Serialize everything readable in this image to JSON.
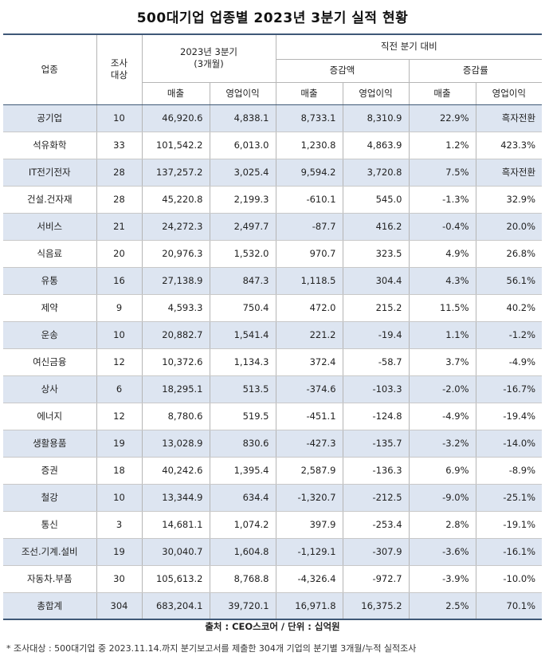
{
  "title": "500대기업 업종별 2023년 3분기 실적 현황",
  "header": {
    "industry": "업종",
    "count": "조사\n대상",
    "period": "2023년 3분기\n(3개월)",
    "vs_prev": "직전 분기 대비",
    "change_amount": "증감액",
    "change_rate": "증감률",
    "sales": "매출",
    "op_profit": "영업이익"
  },
  "rows": [
    {
      "industry": "공기업",
      "count": "10",
      "sales": "46,920.6",
      "op": "4,838.1",
      "d_sales": "8,733.1",
      "d_op": "8,310.9",
      "r_sales": "22.9%",
      "r_op": "흑자전환"
    },
    {
      "industry": "석유화학",
      "count": "33",
      "sales": "101,542.2",
      "op": "6,013.0",
      "d_sales": "1,230.8",
      "d_op": "4,863.9",
      "r_sales": "1.2%",
      "r_op": "423.3%"
    },
    {
      "industry": "IT전기전자",
      "count": "28",
      "sales": "137,257.2",
      "op": "3,025.4",
      "d_sales": "9,594.2",
      "d_op": "3,720.8",
      "r_sales": "7.5%",
      "r_op": "흑자전환"
    },
    {
      "industry": "건설.건자재",
      "count": "28",
      "sales": "45,220.8",
      "op": "2,199.3",
      "d_sales": "-610.1",
      "d_op": "545.0",
      "r_sales": "-1.3%",
      "r_op": "32.9%"
    },
    {
      "industry": "서비스",
      "count": "21",
      "sales": "24,272.3",
      "op": "2,497.7",
      "d_sales": "-87.7",
      "d_op": "416.2",
      "r_sales": "-0.4%",
      "r_op": "20.0%"
    },
    {
      "industry": "식음료",
      "count": "20",
      "sales": "20,976.3",
      "op": "1,532.0",
      "d_sales": "970.7",
      "d_op": "323.5",
      "r_sales": "4.9%",
      "r_op": "26.8%"
    },
    {
      "industry": "유통",
      "count": "16",
      "sales": "27,138.9",
      "op": "847.3",
      "d_sales": "1,118.5",
      "d_op": "304.4",
      "r_sales": "4.3%",
      "r_op": "56.1%"
    },
    {
      "industry": "제약",
      "count": "9",
      "sales": "4,593.3",
      "op": "750.4",
      "d_sales": "472.0",
      "d_op": "215.2",
      "r_sales": "11.5%",
      "r_op": "40.2%"
    },
    {
      "industry": "운송",
      "count": "10",
      "sales": "20,882.7",
      "op": "1,541.4",
      "d_sales": "221.2",
      "d_op": "-19.4",
      "r_sales": "1.1%",
      "r_op": "-1.2%"
    },
    {
      "industry": "여신금융",
      "count": "12",
      "sales": "10,372.6",
      "op": "1,134.3",
      "d_sales": "372.4",
      "d_op": "-58.7",
      "r_sales": "3.7%",
      "r_op": "-4.9%"
    },
    {
      "industry": "상사",
      "count": "6",
      "sales": "18,295.1",
      "op": "513.5",
      "d_sales": "-374.6",
      "d_op": "-103.3",
      "r_sales": "-2.0%",
      "r_op": "-16.7%"
    },
    {
      "industry": "에너지",
      "count": "12",
      "sales": "8,780.6",
      "op": "519.5",
      "d_sales": "-451.1",
      "d_op": "-124.8",
      "r_sales": "-4.9%",
      "r_op": "-19.4%"
    },
    {
      "industry": "생활용품",
      "count": "19",
      "sales": "13,028.9",
      "op": "830.6",
      "d_sales": "-427.3",
      "d_op": "-135.7",
      "r_sales": "-3.2%",
      "r_op": "-14.0%"
    },
    {
      "industry": "증권",
      "count": "18",
      "sales": "40,242.6",
      "op": "1,395.4",
      "d_sales": "2,587.9",
      "d_op": "-136.3",
      "r_sales": "6.9%",
      "r_op": "-8.9%"
    },
    {
      "industry": "철강",
      "count": "10",
      "sales": "13,344.9",
      "op": "634.4",
      "d_sales": "-1,320.7",
      "d_op": "-212.5",
      "r_sales": "-9.0%",
      "r_op": "-25.1%"
    },
    {
      "industry": "통신",
      "count": "3",
      "sales": "14,681.1",
      "op": "1,074.2",
      "d_sales": "397.9",
      "d_op": "-253.4",
      "r_sales": "2.8%",
      "r_op": "-19.1%"
    },
    {
      "industry": "조선.기계.설비",
      "count": "19",
      "sales": "30,040.7",
      "op": "1,604.8",
      "d_sales": "-1,129.1",
      "d_op": "-307.9",
      "r_sales": "-3.6%",
      "r_op": "-16.1%"
    },
    {
      "industry": "자동차.부품",
      "count": "30",
      "sales": "105,613.2",
      "op": "8,768.8",
      "d_sales": "-4,326.4",
      "d_op": "-972.7",
      "r_sales": "-3.9%",
      "r_op": "-10.0%"
    },
    {
      "industry": "총합계",
      "count": "304",
      "sales": "683,204.1",
      "op": "39,720.1",
      "d_sales": "16,971.8",
      "d_op": "16,375.2",
      "r_sales": "2.5%",
      "r_op": "70.1%"
    }
  ],
  "source": "출처 : CEO스코어 / 단위 : 십억원",
  "footnote": "* 조사대상 : 500대기업 중 2023.11.14.까지 분기보고서를 제출한 304개 기업의 분기별 3개월/누적 실적조사",
  "colors": {
    "accent_border": "#3f5877",
    "row_stripe": "#dde5f1"
  }
}
